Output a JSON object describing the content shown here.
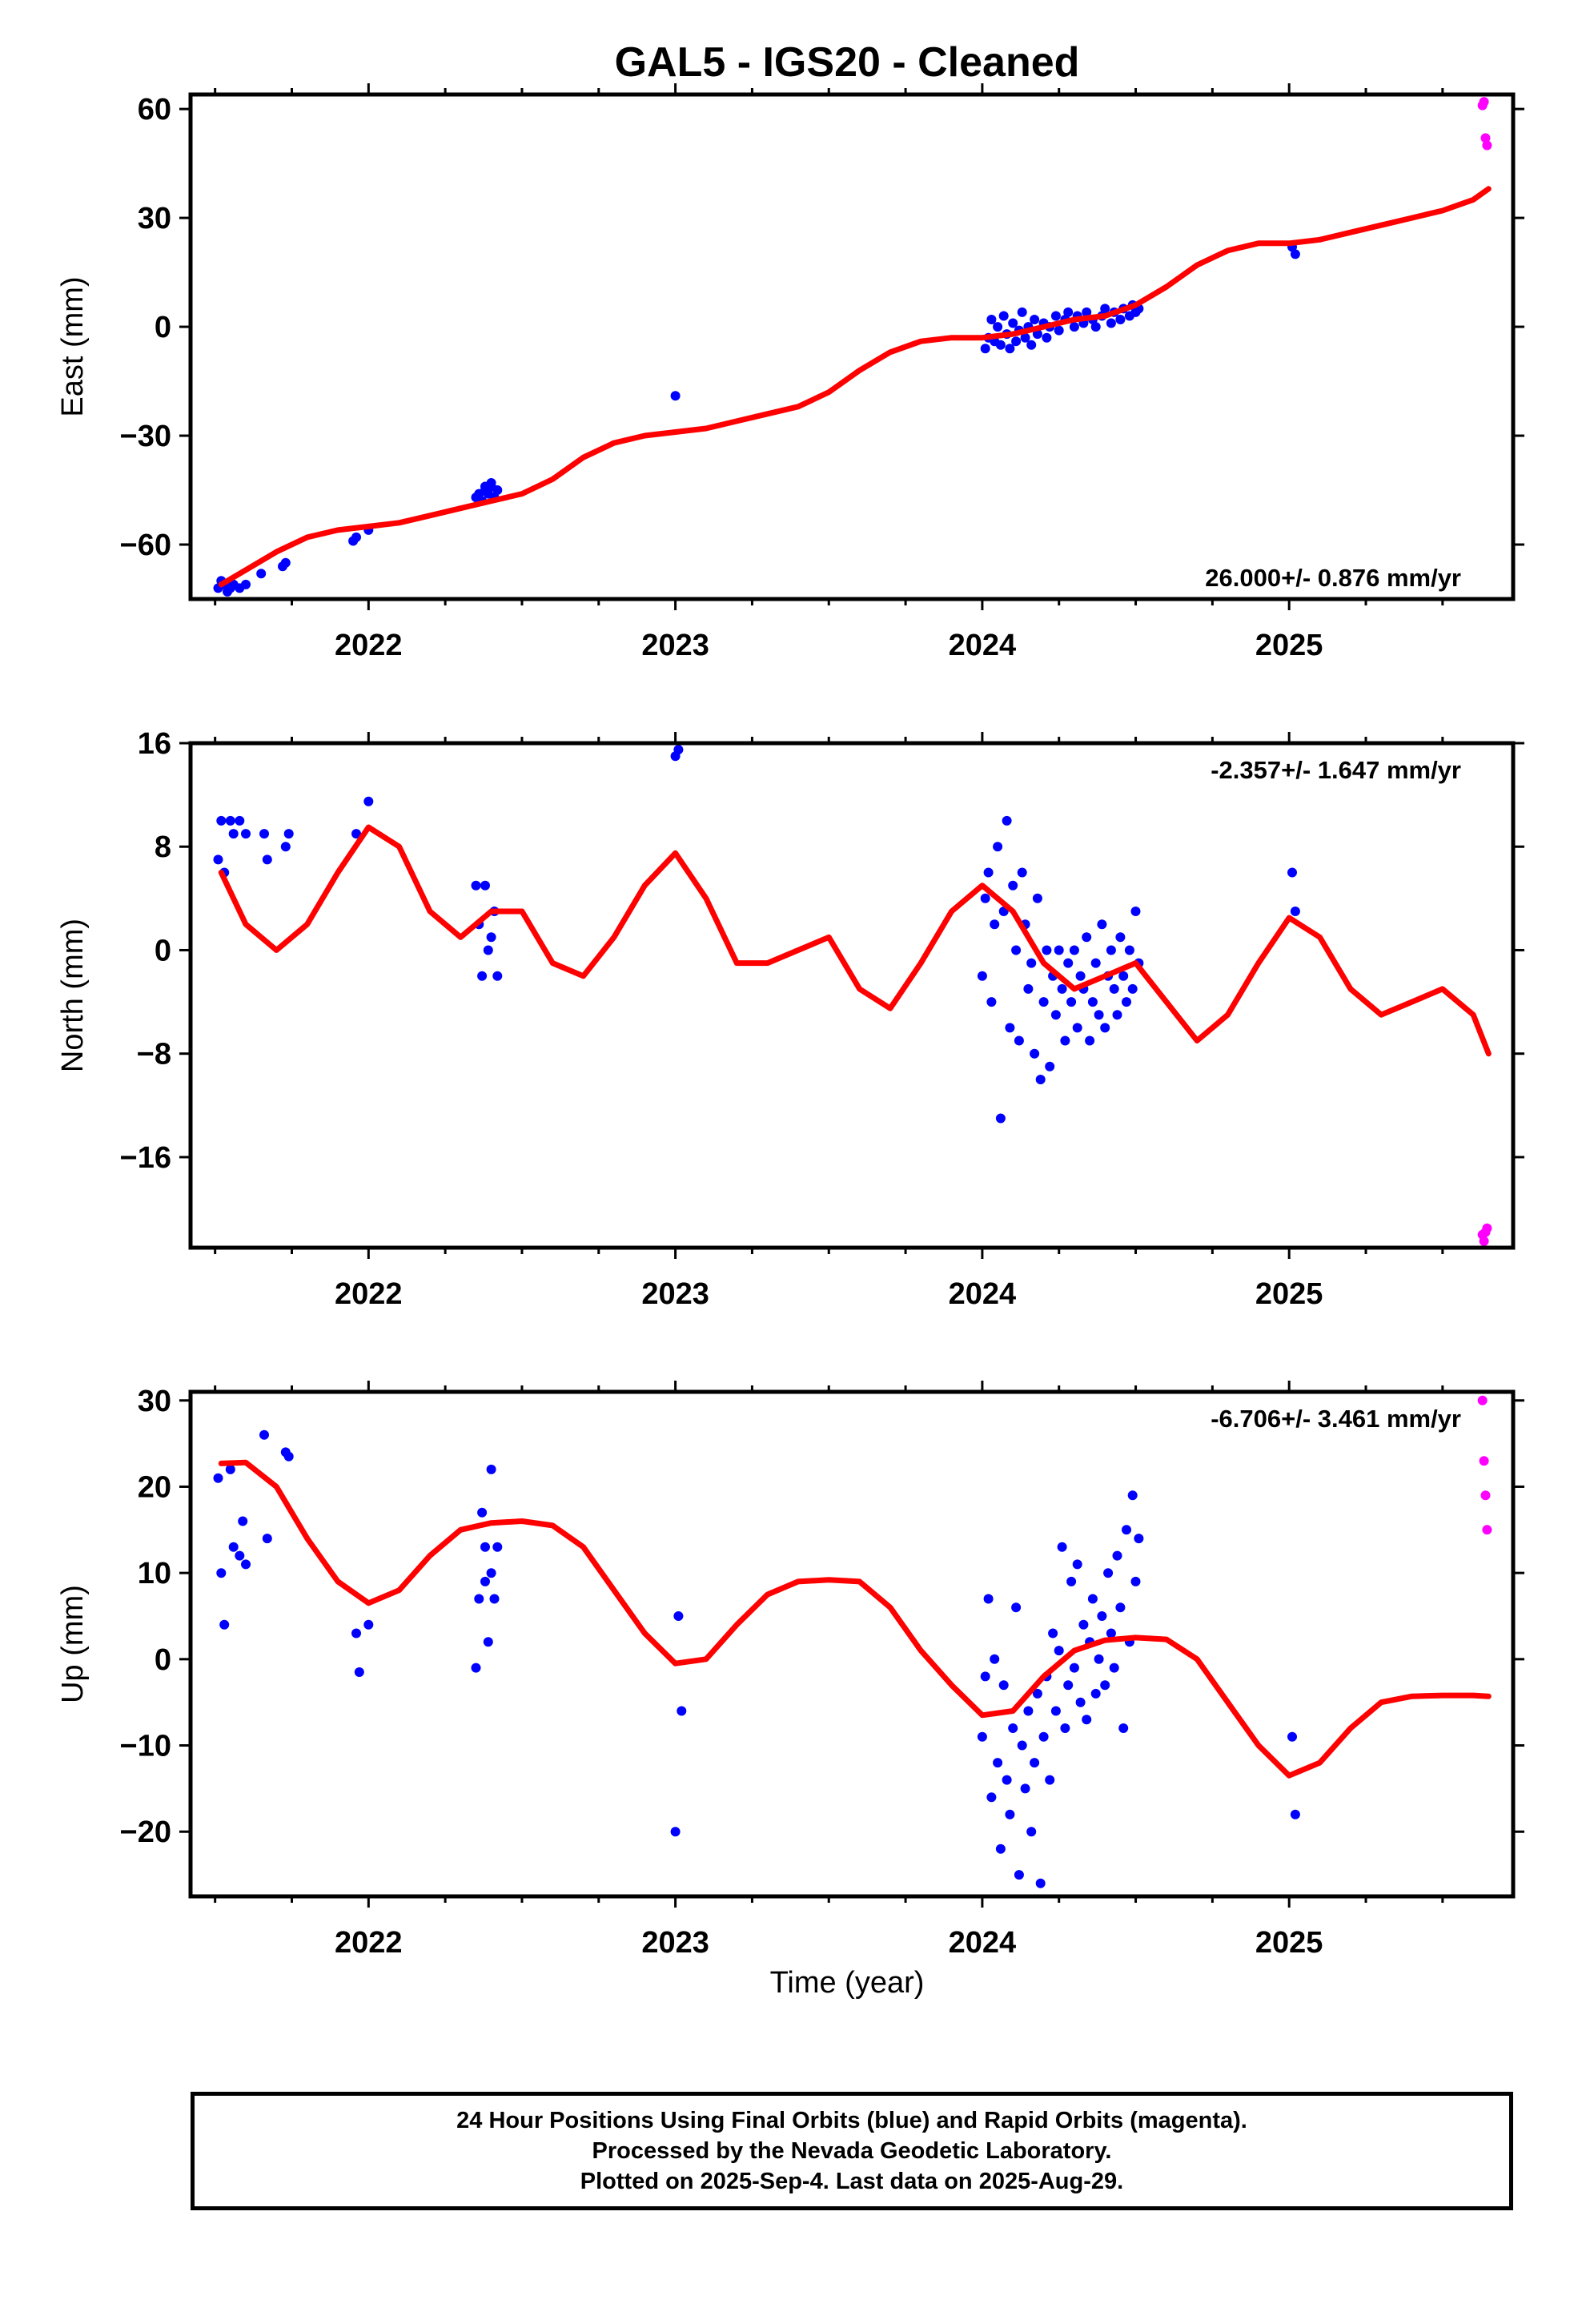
{
  "title": "GAL5  - IGS20 - Cleaned",
  "xlabel": "Time (year)",
  "footer": {
    "lines": [
      "24 Hour Positions Using Final Orbits (blue) and Rapid Orbits (magenta).",
      "Processed by the Nevada Geodetic Laboratory.",
      "Plotted on 2025-Sep-4. Last data on 2025-Aug-29."
    ]
  },
  "colors": {
    "final": "#0000ff",
    "rapid": "#ff00ff",
    "model": "#ff0000",
    "axes": "#000000"
  },
  "chart_data": [
    {
      "type": "scatter",
      "ylabel": "East (mm)",
      "rate_text": "26.000+/- 0.876 mm/yr",
      "rate_position": "bottom-right",
      "xlim": [
        2021.42,
        2025.73
      ],
      "ylim": [
        -75,
        64
      ],
      "yticks": [
        -60,
        -30,
        0,
        30,
        60
      ],
      "ytick_labels": [
        "−60",
        "−30",
        "0",
        "30",
        "60"
      ],
      "xticks": [
        2022,
        2023,
        2024,
        2025
      ],
      "xtick_labels": [
        "2022",
        "2023",
        "2024",
        "2025"
      ],
      "grid": false,
      "series": [
        {
          "role": "final",
          "x": [
            2021.51,
            2021.52,
            2021.53,
            2021.54,
            2021.55,
            2021.56,
            2021.58,
            2021.6,
            2021.65,
            2021.72,
            2021.73,
            2021.95,
            2021.96,
            2022.0,
            2022.35,
            2022.36,
            2022.37,
            2022.38,
            2022.38,
            2022.39,
            2022.4,
            2022.4,
            2022.41,
            2022.42,
            2023.0,
            2024.01,
            2024.02,
            2024.03,
            2024.04,
            2024.05,
            2024.06,
            2024.07,
            2024.08,
            2024.09,
            2024.1,
            2024.11,
            2024.12,
            2024.13,
            2024.14,
            2024.15,
            2024.16,
            2024.17,
            2024.18,
            2024.2,
            2024.21,
            2024.22,
            2024.24,
            2024.25,
            2024.27,
            2024.28,
            2024.3,
            2024.31,
            2024.33,
            2024.34,
            2024.36,
            2024.37,
            2024.39,
            2024.4,
            2024.42,
            2024.43,
            2024.45,
            2024.46,
            2024.48,
            2024.49,
            2024.5,
            2024.51,
            2025.01,
            2025.02
          ],
          "y": [
            -72,
            -70,
            -71,
            -73,
            -72,
            -71,
            -72,
            -71,
            -68,
            -66,
            -65,
            -59,
            -58,
            -56,
            -47,
            -46,
            -48,
            -44,
            -45,
            -46,
            -44,
            -43,
            -47,
            -45,
            -19,
            -6,
            -3,
            2,
            -4,
            0,
            -5,
            3,
            -2,
            -6,
            1,
            -4,
            -1,
            4,
            -3,
            0,
            -5,
            2,
            -2,
            1,
            -3,
            0,
            3,
            -1,
            2,
            4,
            0,
            3,
            1,
            4,
            2,
            0,
            3,
            5,
            1,
            4,
            2,
            5,
            3,
            6,
            4,
            5,
            22,
            20
          ]
        },
        {
          "role": "rapid",
          "x": [
            2025.63,
            2025.635,
            2025.64,
            2025.645
          ],
          "y": [
            61,
            62,
            52,
            50
          ]
        },
        {
          "role": "model",
          "x": [
            2021.52,
            2021.6,
            2021.7,
            2021.8,
            2021.9,
            2022.0,
            2022.1,
            2022.2,
            2022.3,
            2022.4,
            2022.5,
            2022.6,
            2022.7,
            2022.8,
            2022.9,
            2023.0,
            2023.1,
            2023.2,
            2023.3,
            2023.4,
            2023.5,
            2023.6,
            2023.7,
            2023.8,
            2023.9,
            2024.0,
            2024.1,
            2024.2,
            2024.3,
            2024.4,
            2024.5,
            2024.6,
            2024.7,
            2024.8,
            2024.9,
            2025.0,
            2025.1,
            2025.2,
            2025.3,
            2025.4,
            2025.5,
            2025.6,
            2025.65
          ],
          "y": [
            -71,
            -67,
            -62,
            -58,
            -56,
            -55,
            -54,
            -52,
            -50,
            -48,
            -46,
            -42,
            -36,
            -32,
            -30,
            -29,
            -28,
            -26,
            -24,
            -22,
            -18,
            -12,
            -7,
            -4,
            -3,
            -3,
            -2,
            0,
            2,
            3,
            6,
            11,
            17,
            21,
            23,
            23,
            24,
            26,
            28,
            30,
            32,
            35,
            38
          ]
        }
      ]
    },
    {
      "type": "scatter",
      "ylabel": "North (mm)",
      "rate_text": "-2.357+/- 1.647 mm/yr",
      "rate_position": "top-right",
      "xlim": [
        2021.42,
        2025.73
      ],
      "ylim": [
        -23,
        16
      ],
      "yticks": [
        -16,
        -8,
        0,
        8,
        16
      ],
      "ytick_labels": [
        "−16",
        "−8",
        "0",
        "8",
        "16"
      ],
      "xticks": [
        2022,
        2023,
        2024,
        2025
      ],
      "xtick_labels": [
        "2022",
        "2023",
        "2024",
        "2025"
      ],
      "grid": false,
      "series": [
        {
          "role": "final",
          "x": [
            2021.51,
            2021.52,
            2021.53,
            2021.55,
            2021.56,
            2021.58,
            2021.6,
            2021.66,
            2021.67,
            2021.73,
            2021.74,
            2021.96,
            2022.0,
            2022.35,
            2022.36,
            2022.37,
            2022.38,
            2022.39,
            2022.4,
            2022.41,
            2022.42,
            2023.0,
            2023.01,
            2024.0,
            2024.01,
            2024.02,
            2024.03,
            2024.04,
            2024.05,
            2024.06,
            2024.07,
            2024.08,
            2024.09,
            2024.1,
            2024.11,
            2024.12,
            2024.13,
            2024.14,
            2024.15,
            2024.16,
            2024.17,
            2024.18,
            2024.19,
            2024.2,
            2024.21,
            2024.22,
            2024.23,
            2024.24,
            2024.25,
            2024.26,
            2024.27,
            2024.28,
            2024.29,
            2024.3,
            2024.31,
            2024.32,
            2024.33,
            2024.34,
            2024.35,
            2024.36,
            2024.37,
            2024.38,
            2024.39,
            2024.4,
            2024.41,
            2024.42,
            2024.43,
            2024.44,
            2024.45,
            2024.46,
            2024.47,
            2024.48,
            2024.49,
            2024.5,
            2024.51,
            2025.01,
            2025.02
          ],
          "y": [
            7,
            10,
            6,
            10,
            9,
            10,
            9,
            9,
            7,
            8,
            9,
            9,
            11.5,
            5,
            2,
            -2,
            5,
            0,
            1,
            3,
            -2,
            15,
            15.5,
            -2,
            4,
            6,
            -4,
            2,
            8,
            -13,
            3,
            10,
            -6,
            5,
            0,
            -7,
            6,
            2,
            -3,
            -1,
            -8,
            4,
            -10,
            -4,
            0,
            -9,
            -2,
            -5,
            0,
            -3,
            -7,
            -1,
            -4,
            0,
            -6,
            -2,
            -3,
            1,
            -7,
            -4,
            -1,
            -5,
            2,
            -6,
            -2,
            0,
            -3,
            -5,
            1,
            -2,
            -4,
            0,
            -3,
            3,
            -1,
            6,
            3
          ]
        },
        {
          "role": "rapid",
          "x": [
            2025.63,
            2025.635,
            2025.64,
            2025.645
          ],
          "y": [
            -22,
            -22.5,
            -21.8,
            -21.5
          ]
        },
        {
          "role": "model",
          "x": [
            2021.52,
            2021.6,
            2021.7,
            2021.8,
            2021.9,
            2022.0,
            2022.1,
            2022.2,
            2022.3,
            2022.4,
            2022.5,
            2022.6,
            2022.7,
            2022.8,
            2022.9,
            2023.0,
            2023.1,
            2023.2,
            2023.3,
            2023.4,
            2023.5,
            2023.6,
            2023.7,
            2023.8,
            2023.9,
            2024.0,
            2024.1,
            2024.2,
            2024.3,
            2024.4,
            2024.5,
            2024.6,
            2024.7,
            2024.8,
            2024.9,
            2025.0,
            2025.1,
            2025.2,
            2025.3,
            2025.4,
            2025.5,
            2025.6,
            2025.65
          ],
          "y": [
            6,
            2,
            0,
            2,
            6,
            9.5,
            8,
            3,
            1,
            3,
            3,
            -1,
            -2,
            1,
            5,
            7.5,
            4,
            -1,
            -1,
            0,
            1,
            -3,
            -4.5,
            -1,
            3,
            5,
            3,
            -1,
            -3,
            -2,
            -1,
            -4,
            -7,
            -5,
            -1,
            2.5,
            1,
            -3,
            -5,
            -4,
            -3,
            -5,
            -8
          ]
        }
      ]
    },
    {
      "type": "scatter",
      "ylabel": "Up (mm)",
      "rate_text": "-6.706+/- 3.461 mm/yr",
      "rate_position": "top-right",
      "xlim": [
        2021.42,
        2025.73
      ],
      "ylim": [
        -27.5,
        31
      ],
      "yticks": [
        -20,
        -10,
        0,
        10,
        20,
        30
      ],
      "ytick_labels": [
        "−20",
        "−10",
        "0",
        "10",
        "20",
        "30"
      ],
      "xticks": [
        2022,
        2023,
        2024,
        2025
      ],
      "xtick_labels": [
        "2022",
        "2023",
        "2024",
        "2025"
      ],
      "grid": false,
      "series": [
        {
          "role": "final",
          "x": [
            2021.51,
            2021.52,
            2021.53,
            2021.55,
            2021.56,
            2021.58,
            2021.59,
            2021.6,
            2021.66,
            2021.67,
            2021.73,
            2021.74,
            2021.96,
            2021.97,
            2022.0,
            2022.35,
            2022.36,
            2022.37,
            2022.38,
            2022.38,
            2022.39,
            2022.4,
            2022.4,
            2022.41,
            2022.42,
            2023.0,
            2023.01,
            2023.02,
            2024.0,
            2024.01,
            2024.02,
            2024.03,
            2024.04,
            2024.05,
            2024.06,
            2024.07,
            2024.08,
            2024.09,
            2024.1,
            2024.11,
            2024.12,
            2024.13,
            2024.14,
            2024.15,
            2024.16,
            2024.17,
            2024.18,
            2024.19,
            2024.2,
            2024.21,
            2024.22,
            2024.23,
            2024.24,
            2024.25,
            2024.26,
            2024.27,
            2024.28,
            2024.29,
            2024.3,
            2024.31,
            2024.32,
            2024.33,
            2024.34,
            2024.35,
            2024.36,
            2024.37,
            2024.38,
            2024.39,
            2024.4,
            2024.41,
            2024.42,
            2024.43,
            2024.44,
            2024.45,
            2024.46,
            2024.47,
            2024.48,
            2024.49,
            2024.5,
            2024.51,
            2025.01,
            2025.02
          ],
          "y": [
            21,
            10,
            4,
            22,
            13,
            12,
            16,
            11,
            26,
            14,
            24,
            23.5,
            3,
            -1.5,
            4,
            -1,
            7,
            17,
            13,
            9,
            2,
            22,
            10,
            7,
            13,
            -20,
            5,
            -6,
            -9,
            -2,
            7,
            -16,
            0,
            -12,
            -22,
            -3,
            -14,
            -18,
            -8,
            6,
            -25,
            -10,
            -15,
            -6,
            -20,
            -12,
            -4,
            -26,
            -9,
            -2,
            -14,
            3,
            -6,
            1,
            13,
            -8,
            -3,
            9,
            -1,
            11,
            -5,
            4,
            -7,
            2,
            7,
            -4,
            0,
            5,
            -3,
            10,
            3,
            -1,
            12,
            6,
            -8,
            15,
            2,
            19,
            9,
            14,
            -9,
            -18
          ]
        },
        {
          "role": "rapid",
          "x": [
            2025.63,
            2025.635,
            2025.64,
            2025.645
          ],
          "y": [
            30,
            23,
            19,
            15
          ]
        },
        {
          "role": "model",
          "x": [
            2021.52,
            2021.6,
            2021.7,
            2021.8,
            2021.9,
            2022.0,
            2022.1,
            2022.2,
            2022.3,
            2022.4,
            2022.5,
            2022.6,
            2022.7,
            2022.8,
            2022.9,
            2023.0,
            2023.1,
            2023.2,
            2023.3,
            2023.4,
            2023.5,
            2023.6,
            2023.7,
            2023.8,
            2023.9,
            2024.0,
            2024.1,
            2024.2,
            2024.3,
            2024.4,
            2024.5,
            2024.6,
            2024.7,
            2024.8,
            2024.9,
            2025.0,
            2025.1,
            2025.2,
            2025.3,
            2025.4,
            2025.5,
            2025.6,
            2025.65
          ],
          "y": [
            22.7,
            22.8,
            20,
            14,
            9,
            6.5,
            8,
            12,
            15,
            15.8,
            16,
            15.5,
            13,
            8,
            3,
            -0.5,
            0,
            4,
            7.5,
            9,
            9.2,
            9,
            6,
            1,
            -3,
            -6.5,
            -6,
            -2,
            1,
            2.2,
            2.5,
            2.3,
            0,
            -5,
            -10,
            -13.5,
            -12,
            -8,
            -5,
            -4.3,
            -4.2,
            -4.2,
            -4.3
          ]
        }
      ]
    }
  ]
}
